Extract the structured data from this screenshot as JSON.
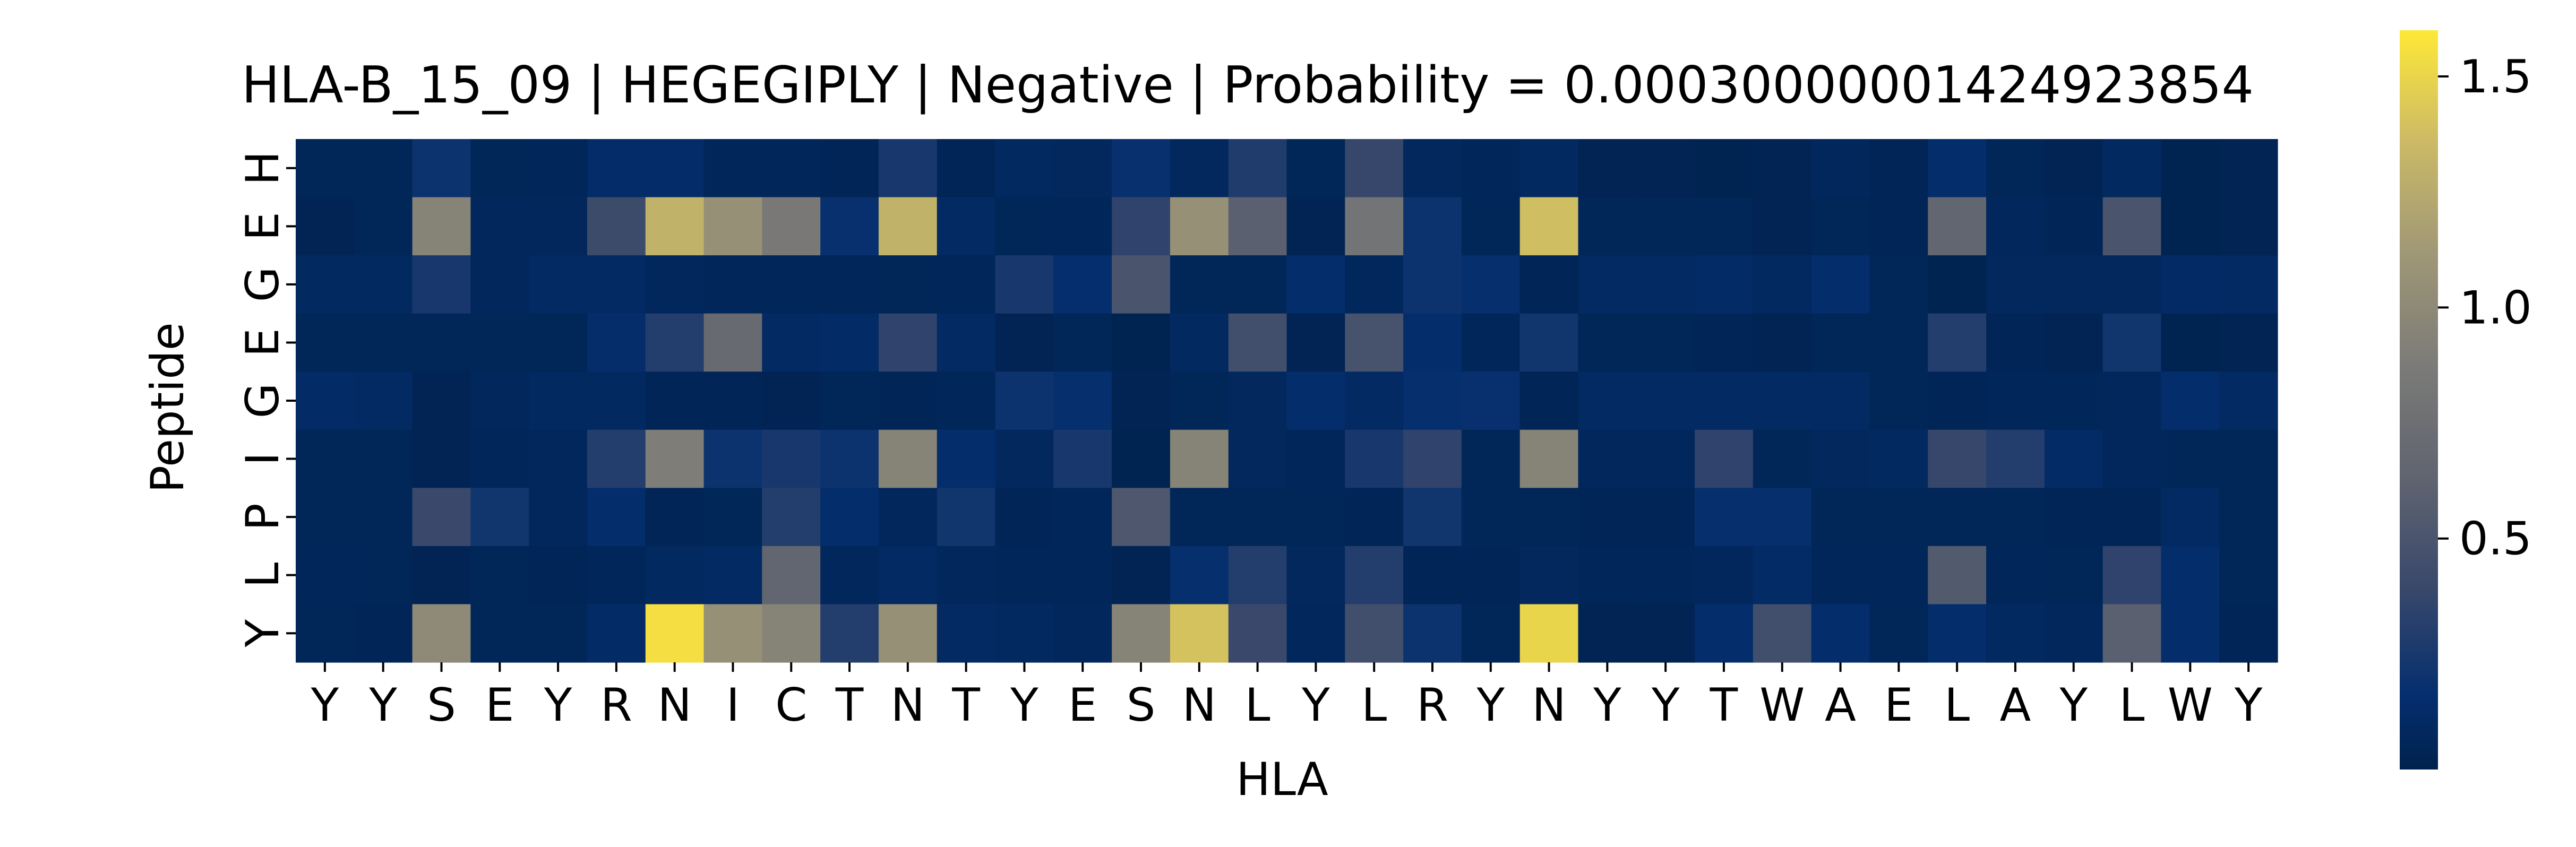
{
  "chart_data": {
    "type": "heatmap",
    "title": "HLA-B_15_09 | HEGEGIPLY | Negative | Probability = 0.00030000001424923854",
    "xlabel": "HLA",
    "ylabel": "Peptide",
    "x": [
      "Y",
      "Y",
      "S",
      "E",
      "Y",
      "R",
      "N",
      "I",
      "C",
      "T",
      "N",
      "T",
      "Y",
      "E",
      "S",
      "N",
      "L",
      "Y",
      "L",
      "R",
      "Y",
      "N",
      "Y",
      "Y",
      "T",
      "W",
      "A",
      "E",
      "L",
      "A",
      "Y",
      "L",
      "W",
      "Y"
    ],
    "y": [
      "H",
      "E",
      "G",
      "E",
      "G",
      "I",
      "P",
      "L",
      "Y"
    ],
    "colormap": "cividis",
    "vmin": 0.0,
    "vmax": 1.6,
    "colorbar_ticks": [
      {
        "value": 0.5,
        "label": "0.5"
      },
      {
        "value": 1.0,
        "label": "1.0"
      },
      {
        "value": 1.5,
        "label": "1.5"
      }
    ],
    "values": [
      [
        0.05,
        0.05,
        0.2,
        0.05,
        0.06,
        0.13,
        0.13,
        0.06,
        0.06,
        0.04,
        0.25,
        0.04,
        0.09,
        0.08,
        0.18,
        0.08,
        0.28,
        0.05,
        0.38,
        0.08,
        0.06,
        0.09,
        0.03,
        0.03,
        0.02,
        0.03,
        0.07,
        0.04,
        0.15,
        0.05,
        0.03,
        0.09,
        0.02,
        0.03
      ],
      [
        0.03,
        0.05,
        0.95,
        0.07,
        0.07,
        0.42,
        1.3,
        1.05,
        0.85,
        0.18,
        1.3,
        0.1,
        0.05,
        0.06,
        0.35,
        1.05,
        0.6,
        0.03,
        0.8,
        0.2,
        0.05,
        1.38,
        0.05,
        0.05,
        0.05,
        0.03,
        0.05,
        0.04,
        0.65,
        0.07,
        0.04,
        0.5,
        0.02,
        0.03
      ],
      [
        0.09,
        0.09,
        0.25,
        0.07,
        0.1,
        0.1,
        0.07,
        0.06,
        0.06,
        0.06,
        0.05,
        0.06,
        0.25,
        0.16,
        0.5,
        0.05,
        0.05,
        0.15,
        0.07,
        0.2,
        0.17,
        0.04,
        0.1,
        0.1,
        0.12,
        0.09,
        0.15,
        0.05,
        0.02,
        0.08,
        0.08,
        0.08,
        0.11,
        0.1
      ],
      [
        0.05,
        0.05,
        0.05,
        0.05,
        0.05,
        0.14,
        0.3,
        0.7,
        0.1,
        0.12,
        0.35,
        0.1,
        0.03,
        0.05,
        0.02,
        0.09,
        0.45,
        0.03,
        0.48,
        0.15,
        0.06,
        0.22,
        0.05,
        0.05,
        0.04,
        0.03,
        0.05,
        0.05,
        0.3,
        0.04,
        0.03,
        0.22,
        0.02,
        0.03
      ],
      [
        0.12,
        0.1,
        0.03,
        0.07,
        0.09,
        0.09,
        0.04,
        0.04,
        0.03,
        0.05,
        0.04,
        0.06,
        0.2,
        0.17,
        0.03,
        0.05,
        0.08,
        0.15,
        0.1,
        0.17,
        0.18,
        0.04,
        0.1,
        0.1,
        0.1,
        0.1,
        0.1,
        0.05,
        0.04,
        0.06,
        0.06,
        0.07,
        0.15,
        0.1
      ],
      [
        0.05,
        0.05,
        0.03,
        0.06,
        0.07,
        0.3,
        0.9,
        0.2,
        0.25,
        0.2,
        0.95,
        0.15,
        0.08,
        0.25,
        0.02,
        0.95,
        0.08,
        0.06,
        0.25,
        0.35,
        0.05,
        0.95,
        0.07,
        0.07,
        0.35,
        0.05,
        0.08,
        0.09,
        0.38,
        0.3,
        0.12,
        0.07,
        0.05,
        0.05
      ],
      [
        0.05,
        0.05,
        0.4,
        0.22,
        0.07,
        0.15,
        0.04,
        0.05,
        0.3,
        0.15,
        0.07,
        0.22,
        0.04,
        0.06,
        0.52,
        0.05,
        0.05,
        0.05,
        0.04,
        0.22,
        0.05,
        0.05,
        0.04,
        0.04,
        0.17,
        0.17,
        0.05,
        0.05,
        0.05,
        0.05,
        0.04,
        0.04,
        0.1,
        0.05
      ],
      [
        0.06,
        0.05,
        0.03,
        0.05,
        0.04,
        0.06,
        0.09,
        0.1,
        0.65,
        0.07,
        0.1,
        0.07,
        0.06,
        0.06,
        0.03,
        0.17,
        0.3,
        0.08,
        0.3,
        0.04,
        0.04,
        0.08,
        0.06,
        0.06,
        0.07,
        0.12,
        0.06,
        0.06,
        0.55,
        0.06,
        0.05,
        0.35,
        0.15,
        0.05
      ],
      [
        0.05,
        0.04,
        1.0,
        0.05,
        0.05,
        0.12,
        1.55,
        1.05,
        0.95,
        0.3,
        1.05,
        0.1,
        0.09,
        0.07,
        0.95,
        1.4,
        0.4,
        0.07,
        0.45,
        0.2,
        0.05,
        1.5,
        0.03,
        0.03,
        0.15,
        0.45,
        0.15,
        0.05,
        0.15,
        0.09,
        0.07,
        0.6,
        0.15,
        0.04
      ]
    ]
  }
}
